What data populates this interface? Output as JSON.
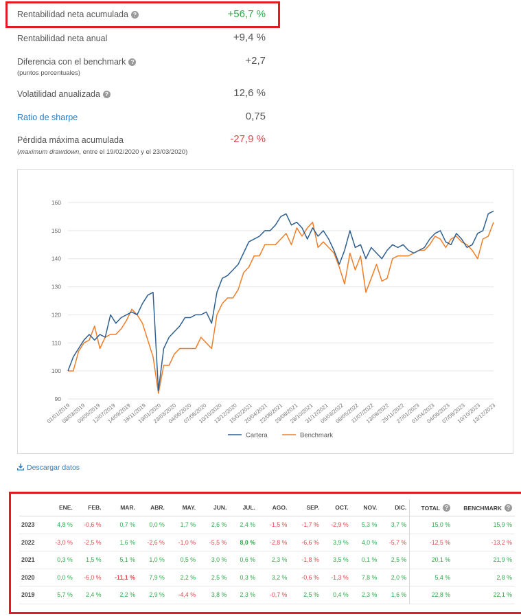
{
  "stats": [
    {
      "label": "Rentabilidad neta acumulada",
      "help": true,
      "value": "+56,7 %",
      "tone": "pos"
    },
    {
      "label": "Rentabilidad neta anual",
      "help": false,
      "value": "+9,4 %",
      "tone": "neutral"
    },
    {
      "label": "Diferencia con el benchmark",
      "help": true,
      "sub": "(puntos porcentuales)",
      "value": "+2,7",
      "tone": "neutral"
    },
    {
      "label": "Volatilidad anualizada",
      "help": true,
      "value": "12,6 %",
      "tone": "neutral"
    },
    {
      "label": "Ratio de sharpe",
      "help": false,
      "value": "0,75",
      "tone": "neutral",
      "link": true
    },
    {
      "label": "Pérdida máxima acumulada",
      "help": false,
      "sub_italic": "maximum drawdown",
      "sub_rest": ", entre el 19/02/2020 y el 23/03/2020",
      "value": "-27,9 %",
      "tone": "neg"
    }
  ],
  "help_icon": "?",
  "download_label": "Descargar datos",
  "download_icon": "download-icon",
  "colors": {
    "cartera": "#2e5f91",
    "benchmark": "#f07d28",
    "positive": "#2eaa4a",
    "negative": "#e0474c",
    "highlight": "#e01b24"
  },
  "chart_data": {
    "type": "line",
    "ylim": [
      90,
      160
    ],
    "yticks": [
      90,
      100,
      110,
      120,
      130,
      140,
      150,
      160
    ],
    "x_ticks": [
      "01/01/2019",
      "08/03/2019",
      "09/05/2019",
      "12/07/2019",
      "14/09/2019",
      "16/11/2019",
      "19/01/2020",
      "23/03/2020",
      "04/06/2020",
      "07/08/2020",
      "10/10/2020",
      "13/12/2020",
      "15/02/2021",
      "20/04/2021",
      "22/06/2021",
      "29/08/2021",
      "28/10/2021",
      "31/12/2021",
      "05/03/2022",
      "08/05/2022",
      "11/07/2022",
      "13/09/2022",
      "25/11/2022",
      "27/01/2023",
      "01/04/2023",
      "04/06/2023",
      "07/08/2023",
      "10/10/2023",
      "13/12/2023"
    ],
    "legend": [
      "Cartera",
      "Benchmark"
    ],
    "legend_position": "bottom",
    "series": [
      {
        "name": "Cartera",
        "x": [
          0,
          2,
          4,
          6,
          8,
          10,
          12,
          14,
          16,
          18,
          20,
          22,
          24,
          26,
          28,
          30,
          32,
          34,
          36,
          38,
          40,
          42,
          44,
          46,
          48,
          50,
          52,
          54,
          56,
          58,
          60,
          62,
          64,
          66,
          68,
          70,
          72,
          74,
          76,
          78,
          80,
          82,
          84,
          86,
          88,
          90,
          92,
          94,
          96,
          98,
          100,
          102,
          104,
          106,
          108,
          110,
          112,
          114,
          116,
          118,
          120,
          122,
          124,
          126,
          128,
          130,
          132,
          134,
          136,
          138,
          140,
          142,
          144,
          146,
          148,
          150,
          152,
          154,
          156,
          158,
          160
        ],
        "values": [
          100,
          105,
          108,
          111,
          113,
          111,
          113,
          112,
          120,
          117,
          119,
          120,
          121,
          120,
          124,
          127,
          128,
          93,
          108,
          112,
          114,
          116,
          119,
          119,
          120,
          120,
          121,
          117,
          128,
          133,
          134,
          136,
          138,
          142,
          146,
          147,
          148,
          150,
          150,
          152,
          155,
          156,
          152,
          153,
          151,
          147,
          151,
          148,
          150,
          147,
          143,
          138,
          143,
          150,
          144,
          145,
          140,
          144,
          142,
          140,
          143,
          145,
          144,
          145,
          143,
          142,
          143,
          144,
          147,
          149,
          150,
          146,
          145,
          149,
          147,
          144,
          145,
          149,
          150,
          156,
          157
        ]
      },
      {
        "name": "Benchmark",
        "x": [
          0,
          2,
          4,
          6,
          8,
          10,
          12,
          14,
          16,
          18,
          20,
          22,
          24,
          26,
          28,
          30,
          32,
          34,
          36,
          38,
          40,
          42,
          44,
          46,
          48,
          50,
          52,
          54,
          56,
          58,
          60,
          62,
          64,
          66,
          68,
          70,
          72,
          74,
          76,
          78,
          80,
          82,
          84,
          86,
          88,
          90,
          92,
          94,
          96,
          98,
          100,
          102,
          104,
          106,
          108,
          110,
          112,
          114,
          116,
          118,
          120,
          122,
          124,
          126,
          128,
          130,
          132,
          134,
          136,
          138,
          140,
          142,
          144,
          146,
          148,
          150,
          152,
          154,
          156,
          158,
          160
        ],
        "values": [
          100,
          100,
          107,
          110,
          111,
          116,
          108,
          112,
          113,
          113,
          115,
          118,
          122,
          120,
          117,
          111,
          105,
          92,
          102,
          102,
          106,
          108,
          108,
          108,
          108,
          112,
          110,
          108,
          120,
          124,
          126,
          126,
          129,
          135,
          137,
          141,
          141,
          145,
          145,
          145,
          147,
          149,
          145,
          151,
          148,
          151,
          153,
          144,
          146,
          144,
          142,
          137,
          131,
          142,
          136,
          141,
          128,
          133,
          138,
          132,
          133,
          140,
          141,
          141,
          141,
          142,
          143,
          143,
          145,
          148,
          147,
          144,
          147,
          148,
          146,
          145,
          143,
          140,
          147,
          148,
          153
        ]
      }
    ]
  },
  "table": {
    "headers": [
      "",
      "ENE.",
      "FEB.",
      "MAR.",
      "ABR.",
      "MAY.",
      "JUN.",
      "JUL.",
      "AGO.",
      "SEP.",
      "OCT.",
      "NOV.",
      "DIC.",
      "TOTAL",
      "BENCHMARK"
    ],
    "header_help": [
      false,
      false,
      false,
      false,
      false,
      false,
      false,
      false,
      false,
      false,
      false,
      false,
      false,
      true,
      true
    ],
    "rows": [
      [
        "2023",
        "4,8 %",
        "-0,6 %",
        "0,7 %",
        "0,0 %",
        "1,7 %",
        "2,6 %",
        "2,4 %",
        "-1,5 %",
        "-1,7 %",
        "-2,9 %",
        "5,3 %",
        "3,7 %",
        "15,0 %",
        "15,9 %"
      ],
      [
        "2022",
        "-3,0 %",
        "-2,5 %",
        "1,6 %",
        "-2,6 %",
        "-1,0 %",
        "-5,5 %",
        "8,0 %",
        "-2,8 %",
        "-6,6 %",
        "3,9 %",
        "4,0 %",
        "-5,7 %",
        "-12,5 %",
        "-13,2 %"
      ],
      [
        "2021",
        "0,3 %",
        "1,5 %",
        "5,1 %",
        "1,0 %",
        "0,5 %",
        "3,0 %",
        "0,6 %",
        "2,3 %",
        "-1,8 %",
        "3,5 %",
        "0,1 %",
        "2,5 %",
        "20,1 %",
        "21,9 %"
      ],
      [
        "2020",
        "0,0 %",
        "-6,0 %",
        "-11,1 %",
        "7,9 %",
        "2,2 %",
        "2,5 %",
        "0,3 %",
        "3,2 %",
        "-0,6 %",
        "-1,3 %",
        "7,8 %",
        "2,0 %",
        "5,4 %",
        "2,8 %"
      ],
      [
        "2019",
        "5,7 %",
        "2,4 %",
        "2,2 %",
        "2,9 %",
        "-4,4 %",
        "3,8 %",
        "2,3 %",
        "-0,7 %",
        "2,5 %",
        "0,4 %",
        "2,3 %",
        "1,6 %",
        "22,8 %",
        "22,1 %"
      ]
    ],
    "bold_cells": [
      "2022-7",
      "2020-3"
    ]
  }
}
